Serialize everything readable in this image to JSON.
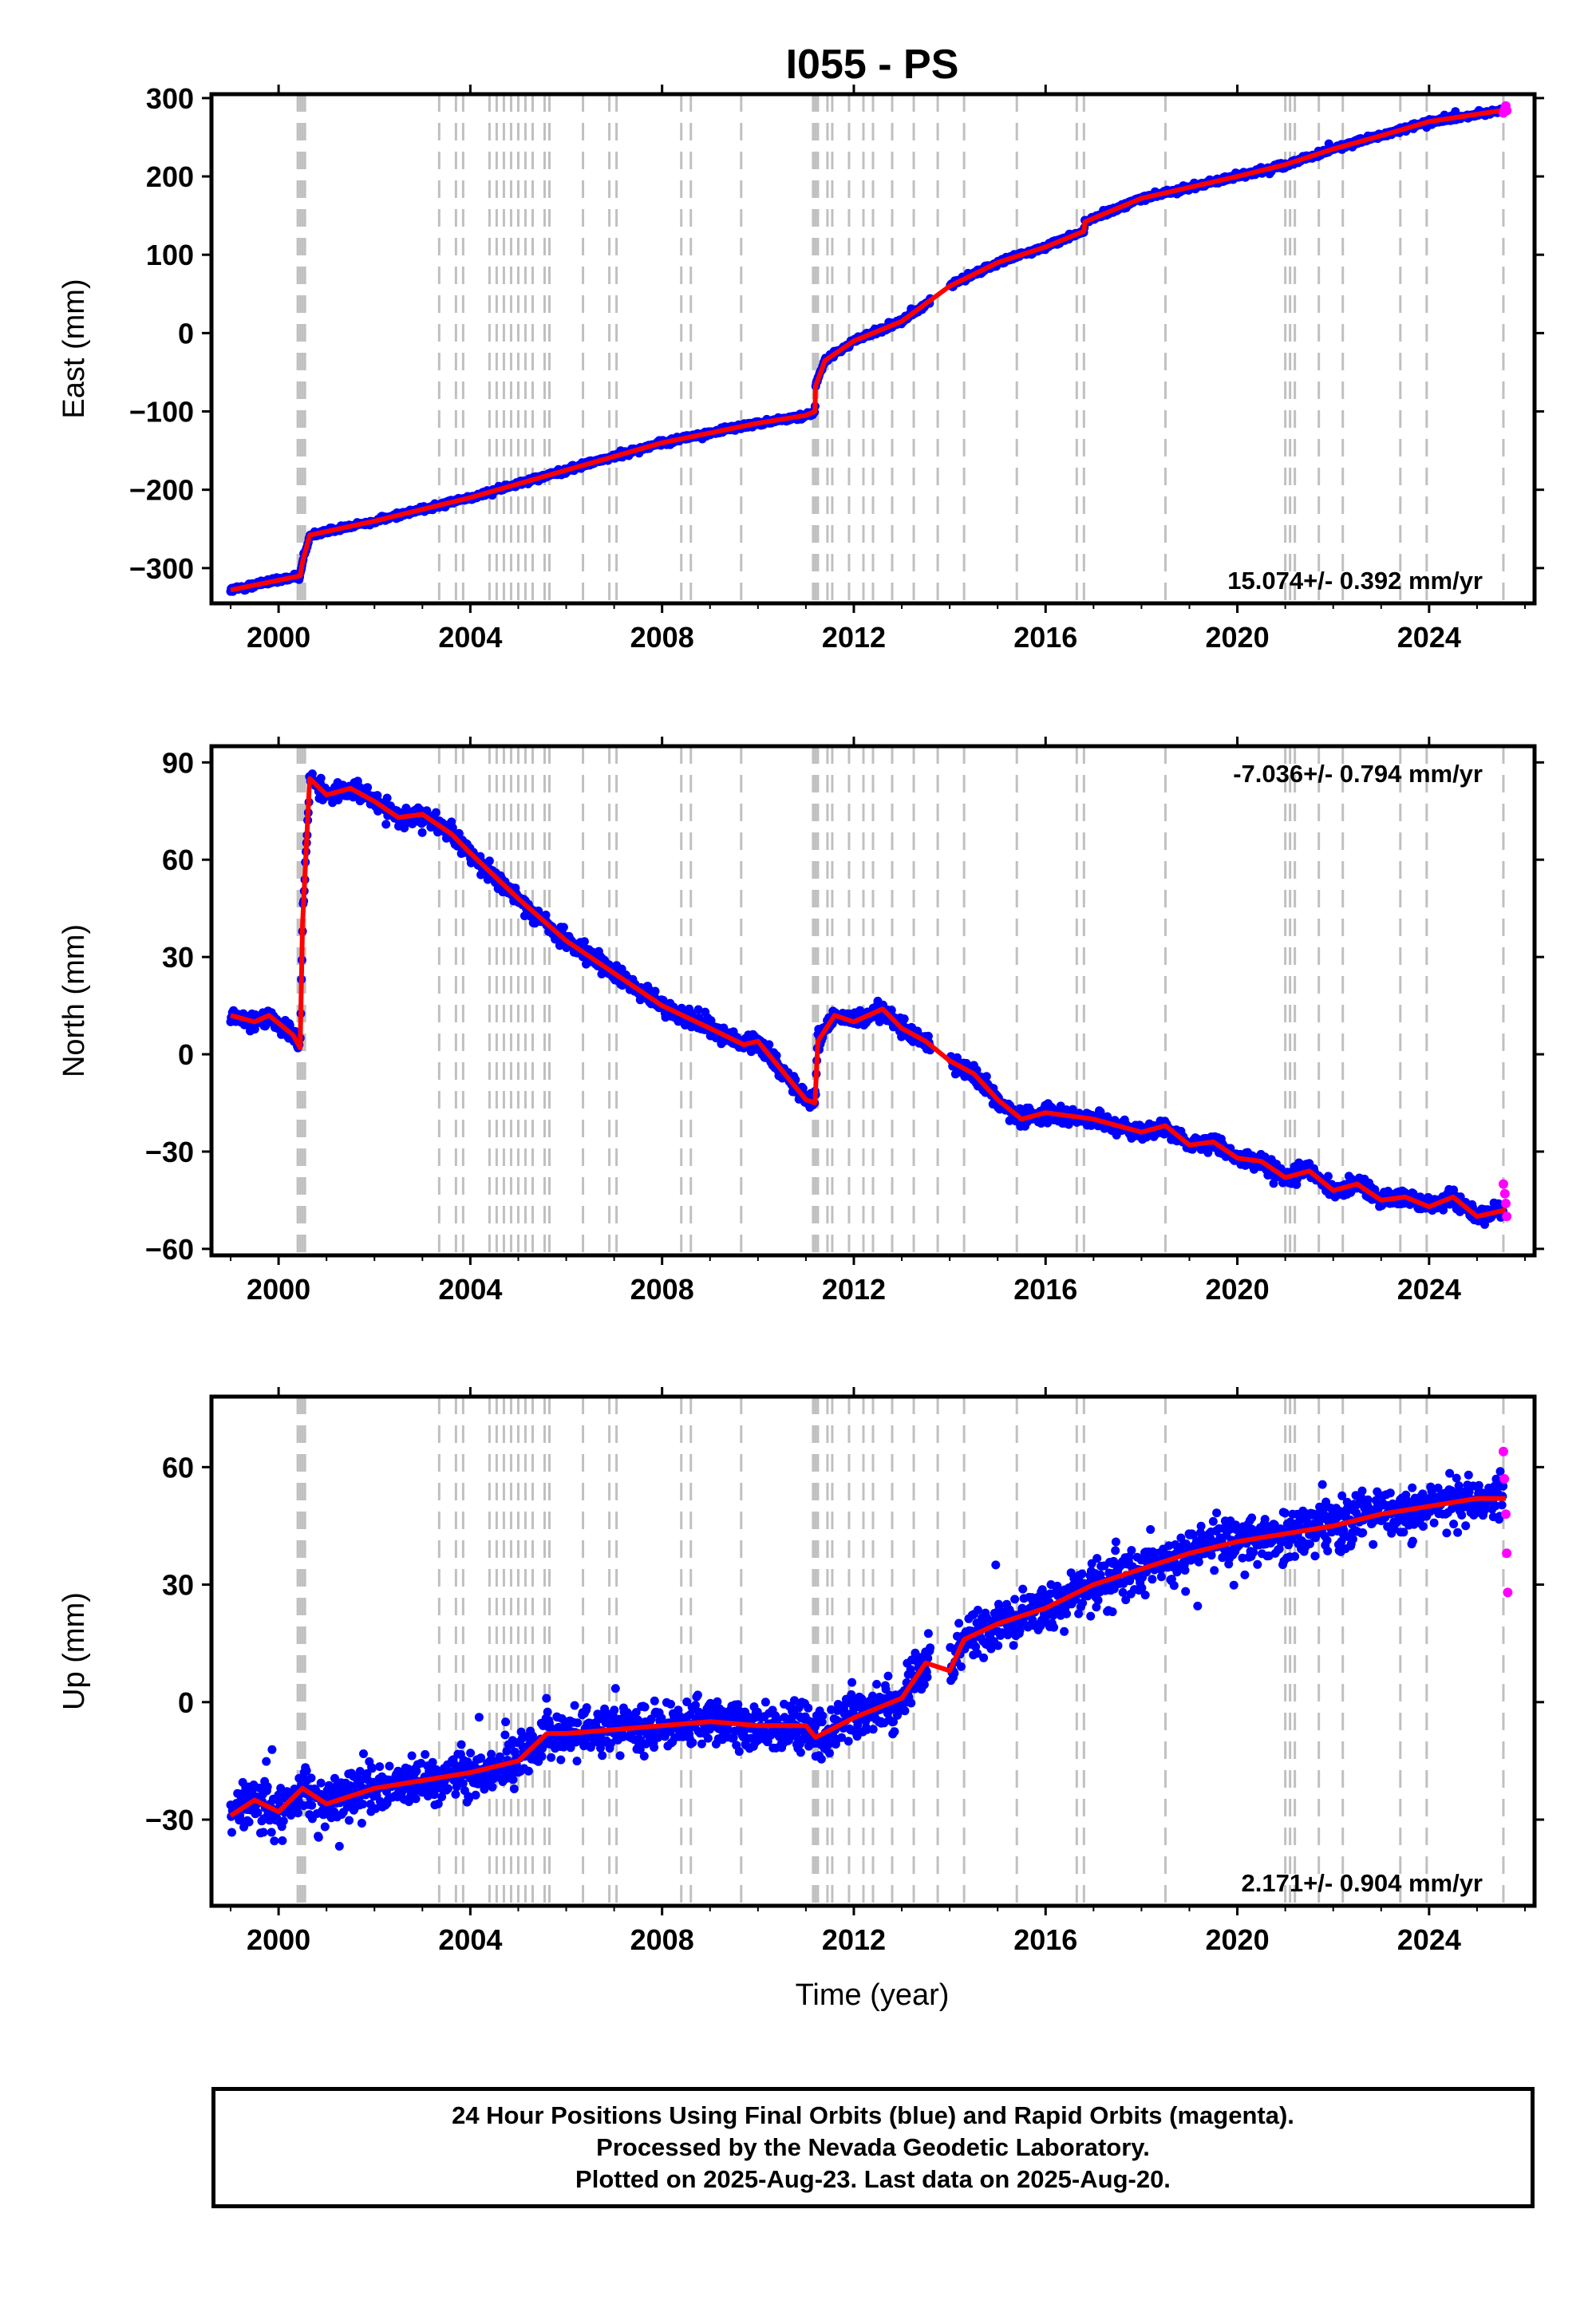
{
  "title": "I055 - PS",
  "xlabel": "Time (year)",
  "footer": {
    "line1": "24 Hour Positions Using Final Orbits (blue) and Rapid Orbits (magenta).",
    "line2": "Processed by the Nevada Geodetic Laboratory.",
    "line3": "Plotted on 2025-Aug-23. Last data on 2025-Aug-20."
  },
  "colors": {
    "final_orbits": "#0000ff",
    "rapid_orbits": "#ff00ff",
    "model": "#ff0000",
    "event_lines": "#c0c0c0"
  },
  "chart_data": [
    {
      "type": "scatter",
      "name": "east",
      "ylabel": "East (mm)",
      "rate_text": "15.074+/- 0.392 mm/yr",
      "rate_position": "bottom-right",
      "xlim": [
        1998.6,
        2026.2
      ],
      "ylim": [
        -345,
        305
      ],
      "xticks": [
        2000,
        2004,
        2008,
        2012,
        2016,
        2020,
        2024
      ],
      "yticks": [
        -300,
        -200,
        -100,
        0,
        100,
        200,
        300
      ],
      "ytick_labels": [
        "−300",
        "−200",
        "−100",
        "0",
        "100",
        "200",
        "300"
      ],
      "scatter_spread": 4,
      "model": {
        "x": [
          1999.0,
          2000.45,
          2000.5,
          2000.65,
          2002.0,
          2004.0,
          2006.0,
          2008.0,
          2010.0,
          2011.0,
          2011.19,
          2011.2,
          2011.4,
          2012.0,
          2013.0,
          2014.0,
          2015.0,
          2016.0,
          2016.8,
          2016.82,
          2018.0,
          2020.0,
          2021.0,
          2022.0,
          2023.0,
          2024.0,
          2025.6
        ],
        "y": [
          -328,
          -310,
          -292,
          -258,
          -240,
          -210,
          -175,
          -140,
          -115,
          -105,
          -100,
          -68,
          -35,
          -10,
          15,
          60,
          90,
          110,
          130,
          142,
          172,
          200,
          215,
          235,
          252,
          270,
          285
        ]
      },
      "rapid": {
        "x": [
          2025.55,
          2025.58,
          2025.6,
          2025.62
        ],
        "y": [
          281,
          286,
          290,
          284
        ]
      }
    },
    {
      "type": "scatter",
      "name": "north",
      "ylabel": "North (mm)",
      "rate_text": "-7.036+/- 0.794 mm/yr",
      "rate_position": "top-right",
      "xlim": [
        1998.6,
        2026.2
      ],
      "ylim": [
        -62,
        95
      ],
      "xticks": [
        2000,
        2004,
        2008,
        2012,
        2016,
        2020,
        2024
      ],
      "yticks": [
        -60,
        -30,
        0,
        30,
        60,
        90
      ],
      "ytick_labels": [
        "−60",
        "−30",
        "0",
        "30",
        "60",
        "90"
      ],
      "scatter_spread": 3,
      "model": {
        "x": [
          1999.0,
          1999.5,
          1999.8,
          2000.3,
          2000.45,
          2000.5,
          2000.65,
          2001.0,
          2001.5,
          2002.0,
          2002.5,
          2003.0,
          2003.6,
          2004.0,
          2005.0,
          2006.0,
          2007.0,
          2008.0,
          2009.0,
          2009.7,
          2010.0,
          2011.0,
          2011.19,
          2011.25,
          2011.6,
          2012.0,
          2012.6,
          2013.0,
          2013.5,
          2014.0,
          2014.5,
          2015.0,
          2015.5,
          2016.0,
          2017.0,
          2018.0,
          2018.5,
          2019.0,
          2019.5,
          2020.0,
          2020.5,
          2021.0,
          2021.5,
          2022.0,
          2022.5,
          2023.0,
          2023.5,
          2024.0,
          2024.5,
          2025.0,
          2025.6
        ],
        "y": [
          12,
          10,
          12,
          6,
          2,
          40,
          85,
          80,
          82,
          78,
          73,
          74,
          68,
          62,
          48,
          35,
          25,
          15,
          8,
          3,
          4,
          -14,
          -15,
          4,
          12,
          10,
          14,
          8,
          4,
          -2,
          -6,
          -14,
          -20,
          -18,
          -20,
          -24,
          -22,
          -28,
          -27,
          -32,
          -33,
          -38,
          -36,
          -42,
          -40,
          -45,
          -44,
          -47,
          -44,
          -50,
          -48
        ]
      },
      "rapid": {
        "x": [
          2025.55,
          2025.58,
          2025.6,
          2025.62
        ],
        "y": [
          -40,
          -43,
          -46,
          -50
        ]
      }
    },
    {
      "type": "scatter",
      "name": "up",
      "ylabel": "Up (mm)",
      "rate_text": "2.171+/- 0.904 mm/yr",
      "rate_position": "bottom-right",
      "xlim": [
        1998.6,
        2026.2
      ],
      "ylim": [
        -52,
        78
      ],
      "xticks": [
        2000,
        2004,
        2008,
        2012,
        2016,
        2020,
        2024
      ],
      "yticks": [
        -30,
        0,
        30,
        60
      ],
      "ytick_labels": [
        "−30",
        "0",
        "30",
        "60"
      ],
      "scatter_spread": 7,
      "model": {
        "x": [
          1999.0,
          1999.5,
          2000.0,
          2000.5,
          2001.0,
          2002.0,
          2003.0,
          2004.0,
          2005.0,
          2005.6,
          2006.0,
          2007.0,
          2008.0,
          2009.0,
          2010.0,
          2011.0,
          2011.2,
          2012.0,
          2013.0,
          2013.5,
          2014.0,
          2014.3,
          2015.0,
          2016.0,
          2017.0,
          2018.0,
          2019.0,
          2020.0,
          2021.0,
          2022.0,
          2023.0,
          2024.0,
          2025.0,
          2025.6
        ],
        "y": [
          -29,
          -25,
          -28,
          -22,
          -26,
          -22,
          -20,
          -18,
          -15,
          -8,
          -8,
          -7,
          -6,
          -5,
          -6,
          -6,
          -9,
          -4,
          1,
          10,
          8,
          16,
          20,
          24,
          30,
          34,
          38,
          41,
          43,
          45,
          48,
          50,
          52,
          52
        ]
      },
      "rapid": {
        "x": [
          2025.55,
          2025.57,
          2025.6,
          2025.62,
          2025.64
        ],
        "y": [
          64,
          57,
          48,
          38,
          28
        ]
      }
    }
  ],
  "event_lines": [
    2000.4,
    2000.45,
    2000.5,
    2000.55,
    2003.35,
    2003.7,
    2003.85,
    2004.4,
    2004.55,
    2004.7,
    2004.85,
    2005.0,
    2005.15,
    2005.3,
    2005.55,
    2005.65,
    2006.35,
    2006.9,
    2007.05,
    2008.4,
    2008.6,
    2009.65,
    2011.15,
    2011.2,
    2011.25,
    2011.45,
    2011.55,
    2011.9,
    2012.2,
    2012.4,
    2012.8,
    2013.25,
    2013.75,
    2014.3,
    2015.4,
    2016.65,
    2016.8,
    2018.5,
    2021.0,
    2021.1,
    2021.2,
    2021.7,
    2022.2,
    2023.4,
    2023.95,
    2025.55
  ]
}
